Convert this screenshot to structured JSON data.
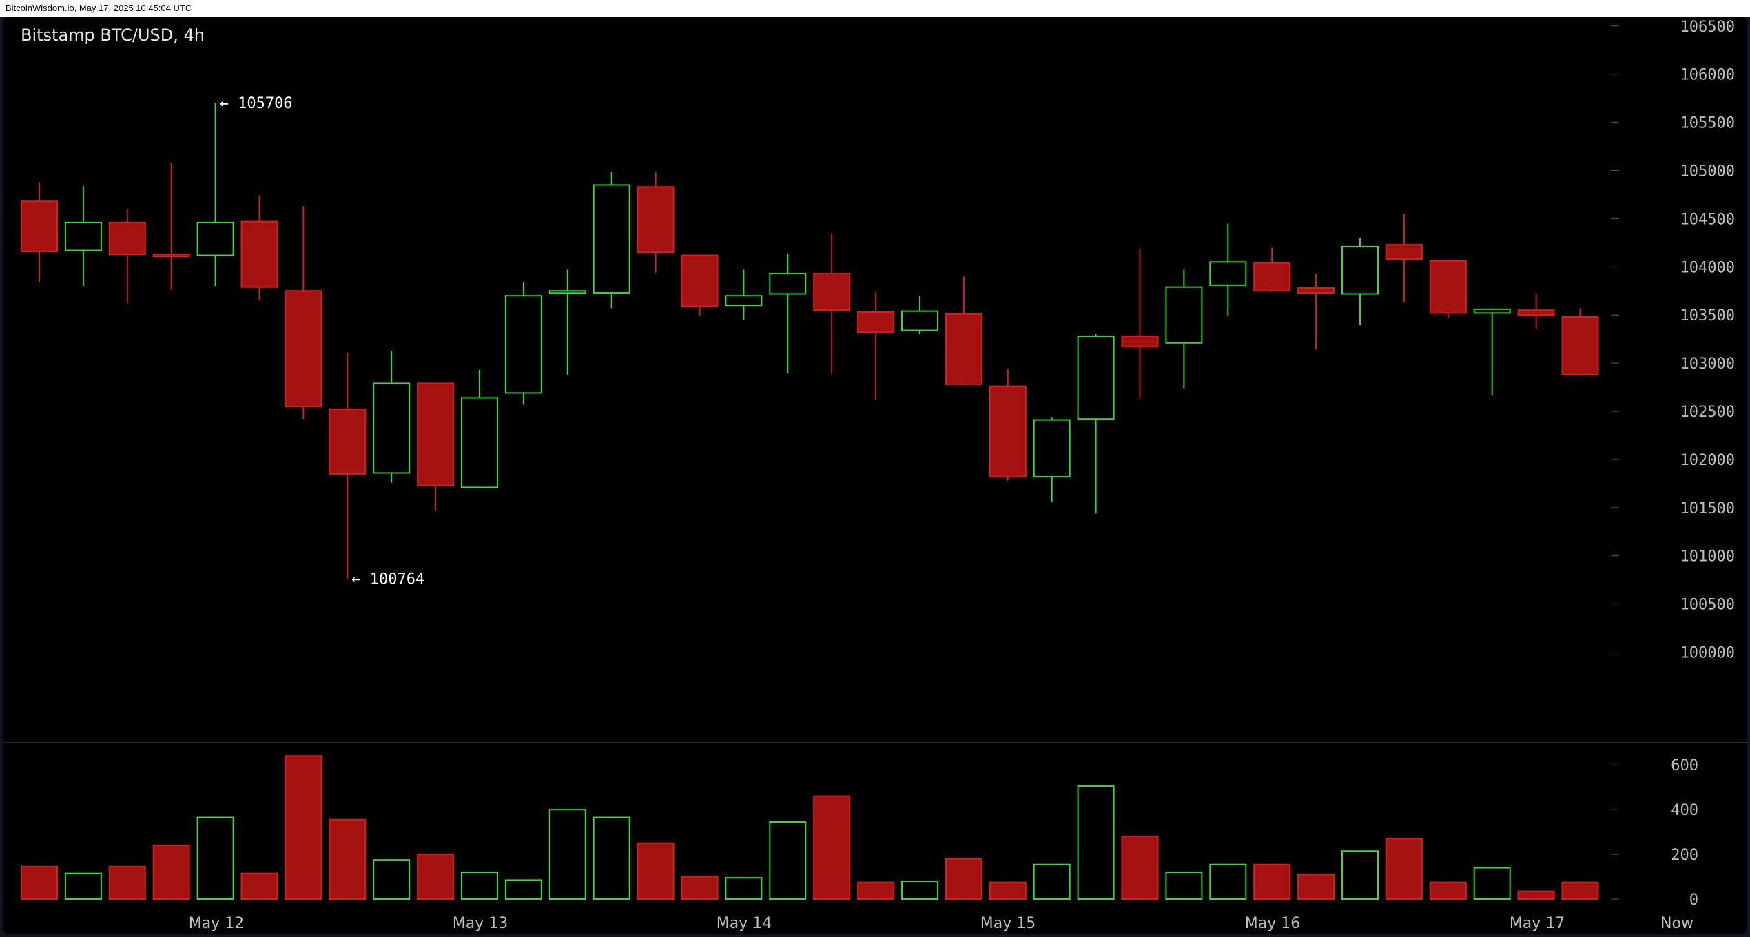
{
  "header": {
    "watermark": "BitcoinWisdom.io, May 17, 2025 10:45:04 UTC"
  },
  "chart_data": {
    "type": "candlestick",
    "title": "Bitstamp BTC/USD, 4h",
    "price_axis": {
      "ticks": [
        100000,
        100500,
        101000,
        101500,
        102000,
        102500,
        103000,
        103500,
        104000,
        104500,
        105000,
        105500,
        106000,
        106500
      ]
    },
    "volume_axis": {
      "ticks": [
        0,
        200,
        400,
        600
      ]
    },
    "x_axis": {
      "labels": [
        "May 12",
        "May 13",
        "May 14",
        "May 15",
        "May 16",
        "May 17",
        "Now"
      ]
    },
    "annotations": [
      {
        "text": "← 105706",
        "value": 105706,
        "candle_index": 4
      },
      {
        "text": "← 100764",
        "value": 100764,
        "candle_index": 7
      }
    ],
    "colors": {
      "up": "#33dd33",
      "down": "#a51212",
      "down_border": "#d42020",
      "grid_tick": "#555555"
    },
    "candles": [
      {
        "o": 104680,
        "h": 104880,
        "l": 103840,
        "c": 104160,
        "v": 145
      },
      {
        "o": 104170,
        "h": 104840,
        "l": 103800,
        "c": 104460,
        "v": 115
      },
      {
        "o": 104460,
        "h": 104600,
        "l": 103620,
        "c": 104130,
        "v": 145
      },
      {
        "o": 104130,
        "h": 105080,
        "l": 103760,
        "c": 104110,
        "v": 240
      },
      {
        "o": 104120,
        "h": 105706,
        "l": 103800,
        "c": 104460,
        "v": 365
      },
      {
        "o": 104470,
        "h": 104740,
        "l": 103650,
        "c": 103790,
        "v": 115
      },
      {
        "o": 103750,
        "h": 104630,
        "l": 102420,
        "c": 102550,
        "v": 640
      },
      {
        "o": 102520,
        "h": 103100,
        "l": 100764,
        "c": 101850,
        "v": 355
      },
      {
        "o": 101860,
        "h": 103130,
        "l": 101760,
        "c": 102790,
        "v": 175
      },
      {
        "o": 102790,
        "h": 102790,
        "l": 101470,
        "c": 101730,
        "v": 200
      },
      {
        "o": 101710,
        "h": 102930,
        "l": 101700,
        "c": 102640,
        "v": 120
      },
      {
        "o": 102690,
        "h": 103840,
        "l": 102570,
        "c": 103700,
        "v": 85
      },
      {
        "o": 103740,
        "h": 103970,
        "l": 102880,
        "c": 103750,
        "v": 400
      },
      {
        "o": 103730,
        "h": 104990,
        "l": 103570,
        "c": 104850,
        "v": 365
      },
      {
        "o": 104830,
        "h": 104990,
        "l": 103940,
        "c": 104150,
        "v": 250
      },
      {
        "o": 104120,
        "h": 104120,
        "l": 103490,
        "c": 103590,
        "v": 100
      },
      {
        "o": 103600,
        "h": 103970,
        "l": 103450,
        "c": 103700,
        "v": 95
      },
      {
        "o": 103720,
        "h": 104140,
        "l": 102900,
        "c": 103930,
        "v": 345
      },
      {
        "o": 103930,
        "h": 104350,
        "l": 102890,
        "c": 103550,
        "v": 460
      },
      {
        "o": 103530,
        "h": 103740,
        "l": 102620,
        "c": 103320,
        "v": 75
      },
      {
        "o": 103340,
        "h": 103700,
        "l": 103300,
        "c": 103540,
        "v": 80
      },
      {
        "o": 103510,
        "h": 103900,
        "l": 102770,
        "c": 102780,
        "v": 180
      },
      {
        "o": 102760,
        "h": 102940,
        "l": 101780,
        "c": 101820,
        "v": 75
      },
      {
        "o": 101820,
        "h": 102440,
        "l": 101560,
        "c": 102410,
        "v": 155
      },
      {
        "o": 102420,
        "h": 103300,
        "l": 101440,
        "c": 103280,
        "v": 505
      },
      {
        "o": 103280,
        "h": 104180,
        "l": 102630,
        "c": 103170,
        "v": 280
      },
      {
        "o": 103210,
        "h": 103970,
        "l": 102740,
        "c": 103790,
        "v": 120
      },
      {
        "o": 103810,
        "h": 104450,
        "l": 103490,
        "c": 104050,
        "v": 155
      },
      {
        "o": 104040,
        "h": 104200,
        "l": 103740,
        "c": 103750,
        "v": 155
      },
      {
        "o": 103780,
        "h": 103930,
        "l": 103140,
        "c": 103730,
        "v": 110
      },
      {
        "o": 103720,
        "h": 104300,
        "l": 103400,
        "c": 104210,
        "v": 215
      },
      {
        "o": 104230,
        "h": 104550,
        "l": 103630,
        "c": 104080,
        "v": 270
      },
      {
        "o": 104060,
        "h": 104060,
        "l": 103470,
        "c": 103520,
        "v": 75
      },
      {
        "o": 103520,
        "h": 103570,
        "l": 102670,
        "c": 103560,
        "v": 140
      },
      {
        "o": 103550,
        "h": 103720,
        "l": 103350,
        "c": 103500,
        "v": 35
      },
      {
        "o": 103480,
        "h": 103570,
        "l": 102880,
        "c": 102880,
        "v": 75
      }
    ]
  }
}
